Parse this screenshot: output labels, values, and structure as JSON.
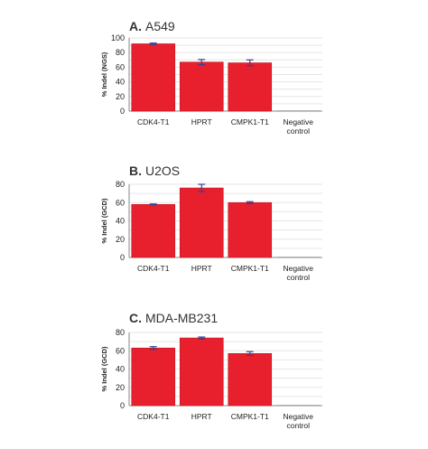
{
  "chart_data": [
    {
      "type": "bar",
      "letter": "A.",
      "title": "A549",
      "ylabel": "% Indel (NGS)",
      "categories": [
        "CDK4-T1",
        "HPRT",
        "CMPK1-T1",
        "Negative control"
      ],
      "values": [
        92,
        67,
        66,
        0.3
      ],
      "errors": [
        1,
        3.5,
        4,
        0
      ],
      "ylim": [
        0,
        100
      ],
      "yticks": [
        0,
        10,
        20,
        30,
        40,
        50,
        60,
        70,
        80,
        90,
        100
      ],
      "ytick_labels": [
        "0",
        "",
        "20",
        "",
        "40",
        "",
        "60",
        "",
        "80",
        "",
        "100"
      ],
      "grid": true
    },
    {
      "type": "bar",
      "letter": "B.",
      "title": "U2OS",
      "ylabel": "% Indel (GCD)",
      "categories": [
        "CDK4-T1",
        "HPRT",
        "CMPK1-T1",
        "Negative control"
      ],
      "values": [
        58,
        76,
        60,
        0.4
      ],
      "errors": [
        0.5,
        4,
        1,
        0
      ],
      "ylim": [
        0,
        80
      ],
      "yticks": [
        0,
        10,
        20,
        30,
        40,
        50,
        60,
        70,
        80
      ],
      "ytick_labels": [
        "0",
        "",
        "20",
        "",
        "40",
        "",
        "60",
        "",
        "80"
      ],
      "grid": true
    },
    {
      "type": "bar",
      "letter": "C.",
      "title": "MDA-MB231",
      "ylabel": "% Indel (GCD)",
      "categories": [
        "CDK4-T1",
        "HPRT",
        "CMPK1-T1",
        "Negative control"
      ],
      "values": [
        63,
        74,
        57,
        0.6
      ],
      "errors": [
        1.5,
        1,
        2,
        0
      ],
      "ylim": [
        0,
        80
      ],
      "yticks": [
        0,
        10,
        20,
        30,
        40,
        50,
        60,
        70,
        80
      ],
      "ytick_labels": [
        "0",
        "",
        "20",
        "",
        "40",
        "",
        "60",
        "",
        "80"
      ],
      "grid": true
    }
  ],
  "colors": {
    "bar": "#e8202e",
    "bar_edge": "#c2161f",
    "error": "#3a3f8f",
    "grid": "#e6e6e6",
    "axis": "#888888",
    "negative_bar": "#b0b0b0"
  }
}
